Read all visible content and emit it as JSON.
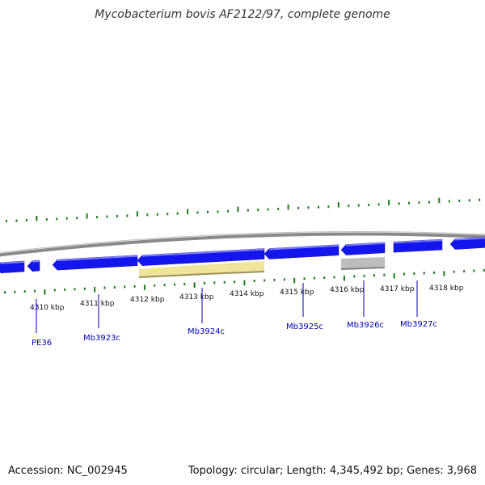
{
  "title": "Mycobacterium bovis AF2122/97, complete genome",
  "footer": {
    "accession": "Accession: NC_002945",
    "summary": "Topology: circular; Length: 4,345,492 bp; Genes: 3,968"
  },
  "colors": {
    "backbone": "#808080",
    "gene": "#1515ee",
    "highlight": "#efe59a",
    "grey_gene": "#bdbdbd",
    "tick": "#1a7a1a",
    "label": "#0000aa"
  },
  "ruler": {
    "unit": "kbp",
    "labels": [
      "4310 kbp",
      "4311 kbp",
      "4312 kbp",
      "4313 kbp",
      "4314 kbp",
      "4315 kbp",
      "4316 kbp",
      "4317 kbp",
      "4318 kbp"
    ]
  },
  "gene_labels": [
    "PE36",
    "Mb3923c",
    "Mb3924c",
    "Mb3925c",
    "Mb3926c",
    "Mb3927c"
  ]
}
